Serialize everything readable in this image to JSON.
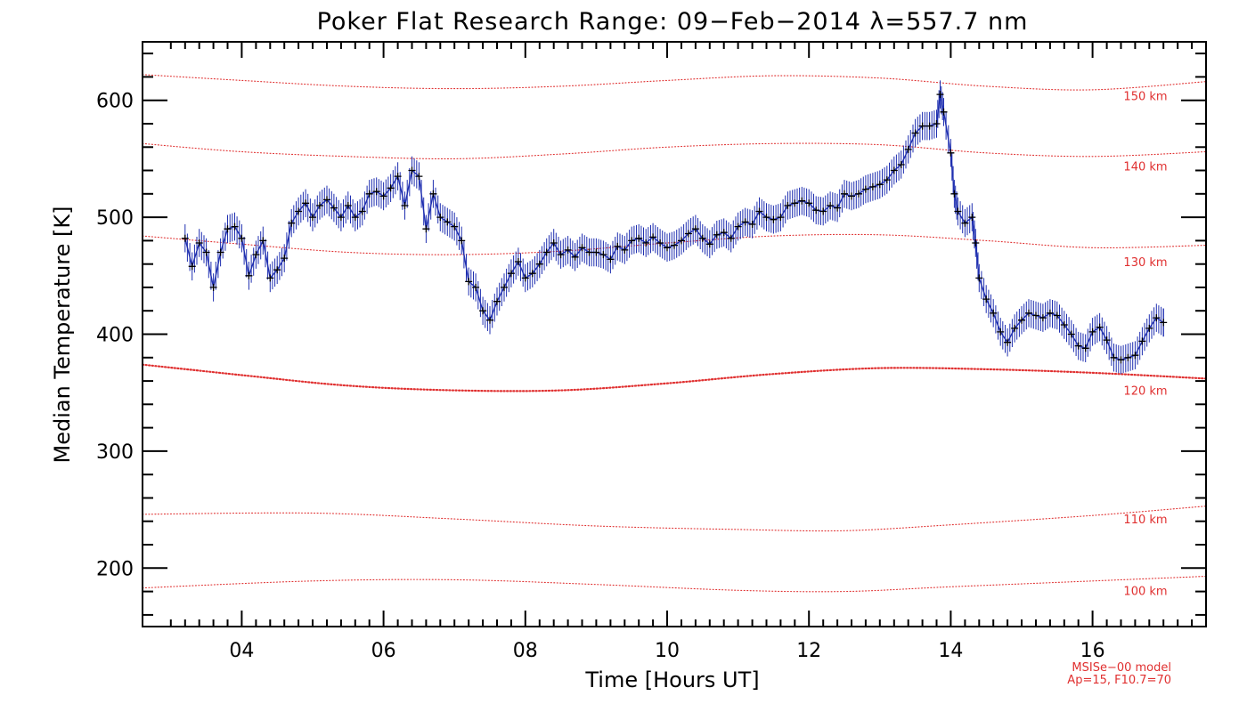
{
  "chart_data": {
    "type": "line",
    "title": "Poker Flat Research Range: 09−Feb−2014 λ=557.7 nm",
    "xlabel": "Time [Hours UT]",
    "ylabel": "Median Temperature [K]",
    "xlim": [
      2.6,
      17.6
    ],
    "ylim": [
      150,
      650
    ],
    "x_ticks": [
      4,
      6,
      8,
      10,
      12,
      14,
      16
    ],
    "x_tick_labels": [
      "04",
      "06",
      "08",
      "10",
      "12",
      "14",
      "16"
    ],
    "y_ticks": [
      200,
      300,
      400,
      500,
      600
    ],
    "y_tick_labels": [
      "200",
      "300",
      "400",
      "500",
      "600"
    ],
    "grid": false,
    "series": [
      {
        "type": "line-with-errorbars",
        "color": "#1f2fb0",
        "marker_color": "#000000",
        "marker": "plus",
        "errorbar_halfwidth_K": 12,
        "points": [
          [
            3.2,
            482
          ],
          [
            3.3,
            458
          ],
          [
            3.4,
            478
          ],
          [
            3.5,
            470
          ],
          [
            3.6,
            440
          ],
          [
            3.7,
            470
          ],
          [
            3.8,
            490
          ],
          [
            3.9,
            492
          ],
          [
            4.0,
            482
          ],
          [
            4.1,
            450
          ],
          [
            4.2,
            468
          ],
          [
            4.3,
            480
          ],
          [
            4.4,
            448
          ],
          [
            4.5,
            455
          ],
          [
            4.6,
            465
          ],
          [
            4.7,
            495
          ],
          [
            4.8,
            505
          ],
          [
            4.9,
            512
          ],
          [
            5.0,
            500
          ],
          [
            5.1,
            510
          ],
          [
            5.2,
            515
          ],
          [
            5.3,
            508
          ],
          [
            5.4,
            500
          ],
          [
            5.5,
            510
          ],
          [
            5.6,
            500
          ],
          [
            5.7,
            505
          ],
          [
            5.8,
            520
          ],
          [
            5.9,
            522
          ],
          [
            6.0,
            518
          ],
          [
            6.1,
            525
          ],
          [
            6.2,
            535
          ],
          [
            6.3,
            510
          ],
          [
            6.4,
            540
          ],
          [
            6.5,
            535
          ],
          [
            6.6,
            490
          ],
          [
            6.7,
            520
          ],
          [
            6.8,
            500
          ],
          [
            6.9,
            496
          ],
          [
            7.0,
            492
          ],
          [
            7.1,
            480
          ],
          [
            7.2,
            445
          ],
          [
            7.3,
            440
          ],
          [
            7.4,
            420
          ],
          [
            7.5,
            412
          ],
          [
            7.6,
            428
          ],
          [
            7.7,
            440
          ],
          [
            7.8,
            452
          ],
          [
            7.9,
            462
          ],
          [
            8.0,
            448
          ],
          [
            8.1,
            452
          ],
          [
            8.2,
            460
          ],
          [
            8.3,
            470
          ],
          [
            8.4,
            478
          ],
          [
            8.5,
            468
          ],
          [
            8.6,
            472
          ],
          [
            8.7,
            466
          ],
          [
            8.8,
            474
          ],
          [
            8.9,
            470
          ],
          [
            9.0,
            470
          ],
          [
            9.1,
            468
          ],
          [
            9.2,
            464
          ],
          [
            9.3,
            475
          ],
          [
            9.4,
            472
          ],
          [
            9.5,
            480
          ],
          [
            9.6,
            482
          ],
          [
            9.7,
            478
          ],
          [
            9.8,
            483
          ],
          [
            9.9,
            478
          ],
          [
            10.0,
            474
          ],
          [
            10.1,
            476
          ],
          [
            10.2,
            480
          ],
          [
            10.3,
            486
          ],
          [
            10.4,
            490
          ],
          [
            10.5,
            482
          ],
          [
            10.6,
            477
          ],
          [
            10.7,
            485
          ],
          [
            10.8,
            487
          ],
          [
            10.9,
            482
          ],
          [
            11.0,
            492
          ],
          [
            11.1,
            496
          ],
          [
            11.2,
            494
          ],
          [
            11.3,
            505
          ],
          [
            11.4,
            500
          ],
          [
            11.5,
            498
          ],
          [
            11.6,
            500
          ],
          [
            11.7,
            510
          ],
          [
            11.8,
            512
          ],
          [
            11.9,
            514
          ],
          [
            12.0,
            512
          ],
          [
            12.1,
            506
          ],
          [
            12.2,
            505
          ],
          [
            12.3,
            510
          ],
          [
            12.4,
            508
          ],
          [
            12.5,
            520
          ],
          [
            12.6,
            518
          ],
          [
            12.7,
            520
          ],
          [
            12.8,
            524
          ],
          [
            12.9,
            526
          ],
          [
            13.0,
            528
          ],
          [
            13.1,
            532
          ],
          [
            13.2,
            540
          ],
          [
            13.3,
            545
          ],
          [
            13.4,
            558
          ],
          [
            13.5,
            572
          ],
          [
            13.6,
            578
          ],
          [
            13.7,
            578
          ],
          [
            13.8,
            580
          ],
          [
            13.85,
            605
          ],
          [
            13.9,
            590
          ],
          [
            14.0,
            555
          ],
          [
            14.05,
            520
          ],
          [
            14.1,
            505
          ],
          [
            14.2,
            495
          ],
          [
            14.3,
            500
          ],
          [
            14.35,
            478
          ],
          [
            14.4,
            448
          ],
          [
            14.5,
            430
          ],
          [
            14.6,
            418
          ],
          [
            14.7,
            402
          ],
          [
            14.8,
            393
          ],
          [
            14.9,
            405
          ],
          [
            15.0,
            412
          ],
          [
            15.1,
            418
          ],
          [
            15.2,
            416
          ],
          [
            15.3,
            414
          ],
          [
            15.4,
            418
          ],
          [
            15.5,
            416
          ],
          [
            15.6,
            408
          ],
          [
            15.7,
            400
          ],
          [
            15.8,
            390
          ],
          [
            15.9,
            388
          ],
          [
            16.0,
            402
          ],
          [
            16.1,
            406
          ],
          [
            16.2,
            395
          ],
          [
            16.3,
            380
          ],
          [
            16.4,
            378
          ],
          [
            16.5,
            380
          ],
          [
            16.6,
            382
          ],
          [
            16.7,
            394
          ],
          [
            16.8,
            405
          ],
          [
            16.9,
            414
          ],
          [
            17.0,
            410
          ]
        ]
      }
    ],
    "model_curves": [
      {
        "label": "100 km",
        "style": "dotted",
        "color": "#e03030",
        "points": [
          [
            2.6,
            183
          ],
          [
            5,
            189
          ],
          [
            7,
            190
          ],
          [
            9,
            186
          ],
          [
            11,
            181
          ],
          [
            12.5,
            180
          ],
          [
            14,
            184
          ],
          [
            16,
            189
          ],
          [
            17.6,
            193
          ]
        ]
      },
      {
        "label": "110 km",
        "style": "dotted",
        "color": "#e03030",
        "points": [
          [
            2.6,
            246
          ],
          [
            5,
            247
          ],
          [
            7,
            242
          ],
          [
            9,
            236
          ],
          [
            11,
            233
          ],
          [
            12.5,
            232
          ],
          [
            14,
            237
          ],
          [
            16,
            245
          ],
          [
            17.6,
            253
          ]
        ]
      },
      {
        "label": "120 km",
        "style": "dotted-bold",
        "color": "#e03030",
        "points": [
          [
            2.6,
            374
          ],
          [
            4,
            365
          ],
          [
            5.5,
            356
          ],
          [
            7,
            352
          ],
          [
            8.5,
            352
          ],
          [
            10,
            358
          ],
          [
            11.5,
            366
          ],
          [
            13,
            371
          ],
          [
            14.5,
            370
          ],
          [
            16,
            367
          ],
          [
            17.6,
            362
          ]
        ]
      },
      {
        "label": "130 km",
        "style": "dotted",
        "color": "#e03030",
        "points": [
          [
            2.6,
            484
          ],
          [
            4,
            477
          ],
          [
            5.5,
            470
          ],
          [
            7,
            468
          ],
          [
            8.5,
            471
          ],
          [
            10,
            478
          ],
          [
            11.5,
            484
          ],
          [
            13,
            485
          ],
          [
            14.5,
            480
          ],
          [
            16,
            474
          ],
          [
            17.6,
            476
          ]
        ]
      },
      {
        "label": "140 km",
        "style": "dotted",
        "color": "#e03030",
        "points": [
          [
            2.6,
            563
          ],
          [
            4,
            556
          ],
          [
            5.5,
            552
          ],
          [
            7,
            550
          ],
          [
            8.5,
            554
          ],
          [
            10,
            560
          ],
          [
            11.5,
            563
          ],
          [
            13,
            562
          ],
          [
            14.5,
            555
          ],
          [
            16,
            552
          ],
          [
            17.6,
            556
          ]
        ]
      },
      {
        "label": "150 km",
        "style": "dotted",
        "color": "#e03030",
        "points": [
          [
            2.6,
            622
          ],
          [
            4,
            617
          ],
          [
            5.5,
            612
          ],
          [
            7,
            610
          ],
          [
            8.5,
            612
          ],
          [
            10,
            617
          ],
          [
            11.5,
            621
          ],
          [
            13,
            619
          ],
          [
            14.5,
            612
          ],
          [
            16,
            609
          ],
          [
            17.6,
            616
          ]
        ]
      }
    ],
    "km_labels": [
      {
        "text": "150 km",
        "y": 604
      },
      {
        "text": "140 km",
        "y": 544
      },
      {
        "text": "130 km",
        "y": 462
      },
      {
        "text": "120 km",
        "y": 352
      },
      {
        "text": "110 km",
        "y": 242
      },
      {
        "text": "100 km",
        "y": 181
      }
    ],
    "annotation_lines": [
      "MSISe−00 model",
      "Ap=15, F10.7=70"
    ]
  }
}
